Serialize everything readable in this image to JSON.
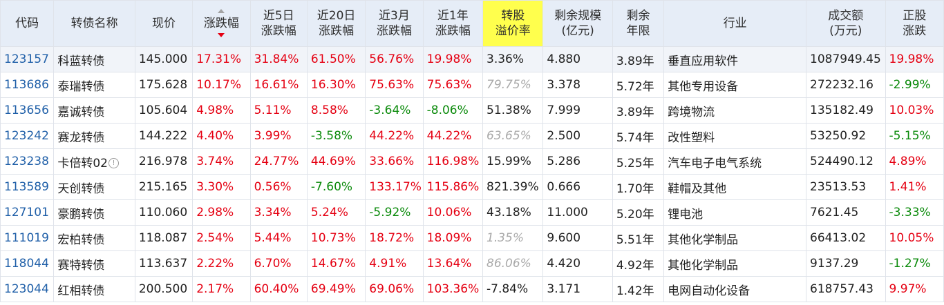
{
  "headers": {
    "code": "代码",
    "name": "转债名称",
    "price": "现价",
    "change": "涨跌幅",
    "d5_l1": "近5日",
    "d5_l2": "涨跌幅",
    "d20_l1": "近20日",
    "d20_l2": "涨跌幅",
    "m3_l1": "近3月",
    "m3_l2": "涨跌幅",
    "y1_l1": "近1年",
    "y1_l2": "涨跌幅",
    "prem_l1": "转股",
    "prem_l2": "溢价率",
    "scale_l1": "剩余规模",
    "scale_l2": "(亿元)",
    "years_l1": "剩余",
    "years_l2": "年限",
    "industry": "行业",
    "vol_l1": "成交额",
    "vol_l2": "(万元)",
    "stock_l1": "正股",
    "stock_l2": "涨跌"
  },
  "rows": [
    {
      "code": "123157",
      "name": "科蓝转债",
      "price": "145.000",
      "change": "17.31%",
      "d5": "31.84%",
      "d20": "61.50%",
      "m3": "56.76%",
      "y1": "19.98%",
      "premium": "3.36%",
      "scale": "4.880",
      "years": "3.89年",
      "industry": "垂直应用软件",
      "volume": "1087949.45",
      "stock": "19.98%"
    },
    {
      "code": "113686",
      "name": "泰瑞转债",
      "price": "175.628",
      "change": "10.17%",
      "d5": "16.61%",
      "d20": "16.30%",
      "m3": "75.63%",
      "y1": "75.63%",
      "premium": "79.75%",
      "scale": "3.378",
      "years": "5.72年",
      "industry": "其他专用设备",
      "volume": "272232.16",
      "stock": "-2.99%"
    },
    {
      "code": "113656",
      "name": "嘉诚转债",
      "price": "105.604",
      "change": "4.98%",
      "d5": "5.11%",
      "d20": "8.58%",
      "m3": "-3.64%",
      "y1": "-8.06%",
      "premium": "51.38%",
      "scale": "7.999",
      "years": "3.89年",
      "industry": "跨境物流",
      "volume": "135182.49",
      "stock": "10.03%"
    },
    {
      "code": "123242",
      "name": "赛龙转债",
      "price": "144.222",
      "change": "4.40%",
      "d5": "3.99%",
      "d20": "-3.58%",
      "m3": "44.22%",
      "y1": "44.22%",
      "premium": "63.65%",
      "scale": "2.500",
      "years": "5.74年",
      "industry": "改性塑料",
      "volume": "53250.92",
      "stock": "-5.15%"
    },
    {
      "code": "123238",
      "name": "卡倍转02",
      "price": "216.978",
      "change": "3.74%",
      "d5": "24.77%",
      "d20": "44.69%",
      "m3": "33.66%",
      "y1": "116.98%",
      "premium": "15.99%",
      "scale": "5.286",
      "years": "5.25年",
      "industry": "汽车电子电气系统",
      "volume": "524490.12",
      "stock": "4.89%"
    },
    {
      "code": "113589",
      "name": "天创转债",
      "price": "215.165",
      "change": "3.30%",
      "d5": "0.56%",
      "d20": "-7.60%",
      "m3": "133.17%",
      "y1": "115.86%",
      "premium": "821.39%",
      "scale": "0.666",
      "years": "1.70年",
      "industry": "鞋帽及其他",
      "volume": "23513.53",
      "stock": "1.41%"
    },
    {
      "code": "127101",
      "name": "豪鹏转债",
      "price": "110.060",
      "change": "2.98%",
      "d5": "3.34%",
      "d20": "5.24%",
      "m3": "-5.92%",
      "y1": "10.06%",
      "premium": "43.18%",
      "scale": "11.000",
      "years": "5.20年",
      "industry": "锂电池",
      "volume": "7621.45",
      "stock": "-3.33%"
    },
    {
      "code": "111019",
      "name": "宏柏转债",
      "price": "118.087",
      "change": "2.54%",
      "d5": "5.44%",
      "d20": "10.73%",
      "m3": "18.72%",
      "y1": "18.09%",
      "premium": "1.35%",
      "scale": "9.600",
      "years": "5.51年",
      "industry": "其他化学制品",
      "volume": "66413.02",
      "stock": "10.05%"
    },
    {
      "code": "118044",
      "name": "赛特转债",
      "price": "113.637",
      "change": "2.22%",
      "d5": "6.70%",
      "d20": "14.67%",
      "m3": "4.91%",
      "y1": "13.64%",
      "premium": "86.06%",
      "scale": "4.420",
      "years": "4.92年",
      "industry": "其他化学制品",
      "volume": "9137.29",
      "stock": "-1.27%"
    },
    {
      "code": "123044",
      "name": "红相转债",
      "price": "200.500",
      "change": "2.17%",
      "d5": "60.40%",
      "d20": "69.49%",
      "m3": "69.06%",
      "y1": "103.36%",
      "premium": "-7.84%",
      "scale": "3.171",
      "years": "1.42年",
      "industry": "电网自动化设备",
      "volume": "618757.43",
      "stock": "9.97%"
    }
  ],
  "colors": {
    "up": "#e50012",
    "down": "#0a8a0a",
    "code": "#1f5fa8",
    "header_bg": "#e6edf7",
    "highlight": "#ffff4d",
    "muted": "#a9a9a9"
  },
  "icons": {
    "sort": "sort-desc-icon",
    "info": "info-circle-icon"
  }
}
